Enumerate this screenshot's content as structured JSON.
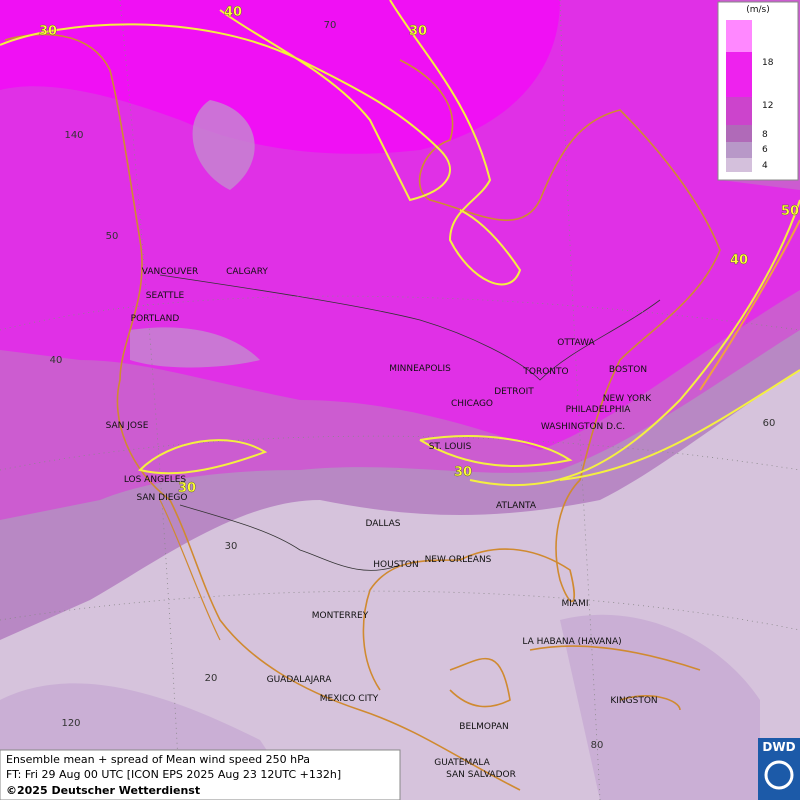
{
  "map": {
    "cities": [
      "VANCOUVER",
      "CALGARY",
      "SEATTLE",
      "PORTLAND",
      "SAN JOSE",
      "LOS ANGELES",
      "SAN DIEGO",
      "MINNEAPOLIS",
      "DETROIT",
      "TORONTO",
      "OTTAWA",
      "BOSTON",
      "NEW YORK",
      "PHILADELPHIA",
      "WASHINGTON D.C.",
      "CHICAGO",
      "ST. LOUIS",
      "ATLANTA",
      "DALLAS",
      "HOUSTON",
      "NEW ORLEANS",
      "MIAMI",
      "MONTERREY",
      "LA HABANA (HAVANA)",
      "GUADALAJARA",
      "MEXICO CITY",
      "KINGSTON",
      "BELMOPAN",
      "GUATEMALA",
      "SAN SALVADOR"
    ],
    "grid_labels": [
      "70",
      "140",
      "50",
      "40",
      "60",
      "30",
      "20",
      "120",
      "80"
    ],
    "contour_labels": [
      "40",
      "30",
      "30",
      "40",
      "50",
      "30",
      "30"
    ]
  },
  "legend": {
    "unit": "(m/s)",
    "levels": [
      18,
      12,
      8,
      6,
      4
    ]
  },
  "footer": {
    "lines": [
      "Ensemble mean + spread of Mean wind speed 250 hPa",
      "FT: Fri 29 Aug 00 UTC [ICON EPS 2025 Aug 23 12UTC +132h]",
      "©2025 Deutscher Wetterdienst"
    ]
  },
  "logo": "DWD"
}
